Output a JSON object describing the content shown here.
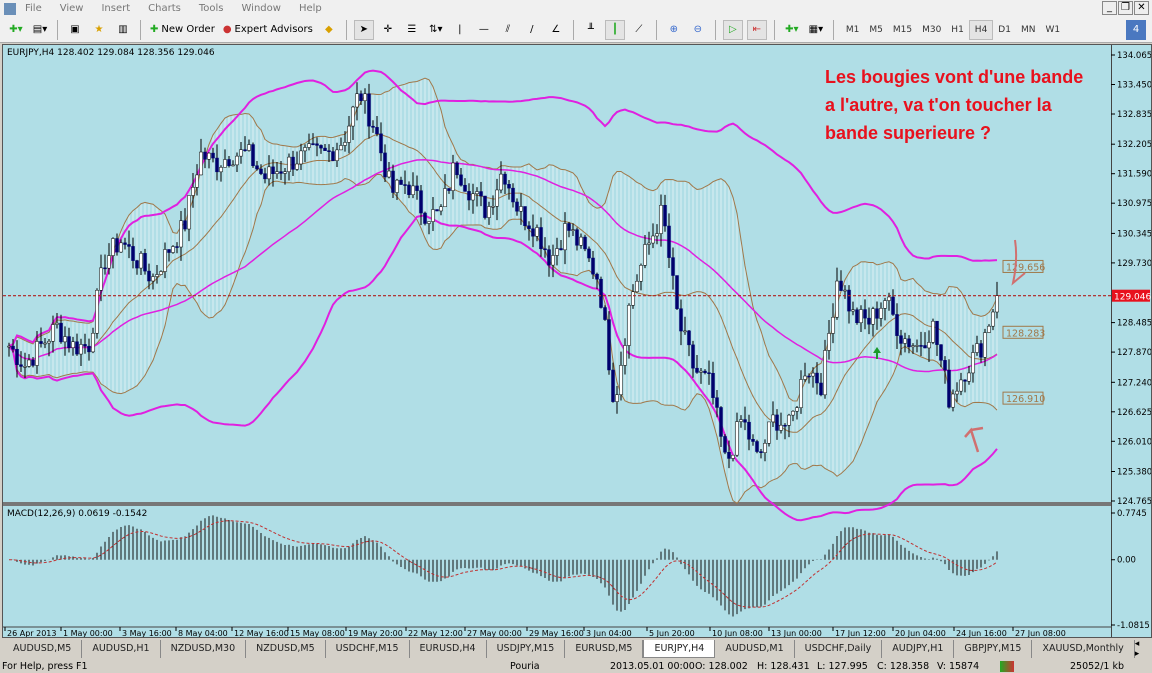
{
  "menu": [
    "File",
    "View",
    "Insert",
    "Charts",
    "Tools",
    "Window",
    "Help"
  ],
  "toolbar": {
    "new_order": "New Order",
    "expert_advisors": "Expert Advisors",
    "timeframes": [
      "M1",
      "M5",
      "M15",
      "M30",
      "H1",
      "H4",
      "D1",
      "MN",
      "W1"
    ],
    "active_timeframe": "H4",
    "notifications": "4"
  },
  "chart": {
    "title": "EURJPY,H4  128.402 129.084 128.356 129.046",
    "annotation": "Les bougies vont d'une bande a l'autre, va t'on toucher la bande superieure ?",
    "macd_title": "MACD(12,26,9) 0.0619 -0.1542",
    "bid_label": "129.046",
    "band_labels": [
      "129.656",
      "128.283",
      "126.910"
    ],
    "colors": {
      "background": "#b0dee6",
      "bull": "#000000",
      "bear": "#00006e",
      "band": "#a0784a",
      "outer_band": "#e020e0",
      "bid": "#e8111d"
    }
  },
  "chart_data": {
    "type": "candlestick",
    "symbol": "EURJPY",
    "timeframe": "H4",
    "ylim": [
      124.765,
      134.065
    ],
    "y_ticks": [
      "134.065",
      "133.450",
      "132.835",
      "132.205",
      "131.590",
      "130.975",
      "130.345",
      "129.730",
      "128.485",
      "127.870",
      "127.240",
      "126.625",
      "126.010",
      "125.380",
      "124.765"
    ],
    "x_ticks": [
      "26 Apr 2013",
      "1 May 00:00",
      "3 May 16:00",
      "8 May 04:00",
      "12 May 16:00",
      "15 May 08:00",
      "19 May 20:00",
      "22 May 12:00",
      "27 May 00:00",
      "29 May 16:00",
      "3 Jun 04:00",
      "5 Jun 20:00",
      "10 Jun 08:00",
      "13 Jun 00:00",
      "17 Jun 12:00",
      "20 Jun 04:00",
      "24 Jun 16:00",
      "27 Jun 08:00"
    ],
    "close_path": [
      128.0,
      127.6,
      128.0,
      128.4,
      128.0,
      128.0,
      129.8,
      130.2,
      129.8,
      129.4,
      130.0,
      130.5,
      132.0,
      131.8,
      132.0,
      132.0,
      131.5,
      131.7,
      131.9,
      132.0,
      132.0,
      132.3,
      133.3,
      132.5,
      131.2,
      131.4,
      130.8,
      130.7,
      131.8,
      131.2,
      130.8,
      131.7,
      130.8,
      130.5,
      129.8,
      130.5,
      130.0,
      129.4,
      126.8,
      129.0,
      130.0,
      130.8,
      128.5,
      127.5,
      127.2,
      125.5,
      126.5,
      125.6,
      126.5,
      126.3,
      127.6,
      127.2,
      129.5,
      128.6,
      128.5,
      129.0,
      128.2,
      128.0,
      128.4,
      126.9,
      127.5,
      128.0,
      129.046
    ],
    "macd_ylim": [
      -1.0815,
      0.7745
    ],
    "macd_ticks": [
      "0.7745",
      "0.00",
      "-1.0815"
    ]
  },
  "tabs": [
    "AUDUSD,M5",
    "AUDUSD,H1",
    "NZDUSD,M30",
    "NZDUSD,M5",
    "USDCHF,M15",
    "EURUSD,H4",
    "USDJPY,M15",
    "EURUSD,M5",
    "EURJPY,H4",
    "AUDUSD,M1",
    "USDCHF,Daily",
    "AUDJPY,H1",
    "GBPJPY,M15",
    "XAUUSD,Monthly"
  ],
  "active_tab": "EURJPY,H4",
  "status": {
    "help": "For Help, press F1",
    "profile": "Pouria",
    "datetime": "2013.05.01 00:00",
    "open": "O: 128.002",
    "high": "H: 128.431",
    "low": "L: 127.995",
    "close": "C: 128.358",
    "volume": "V: 15874",
    "traffic": "25052/1 kb"
  }
}
